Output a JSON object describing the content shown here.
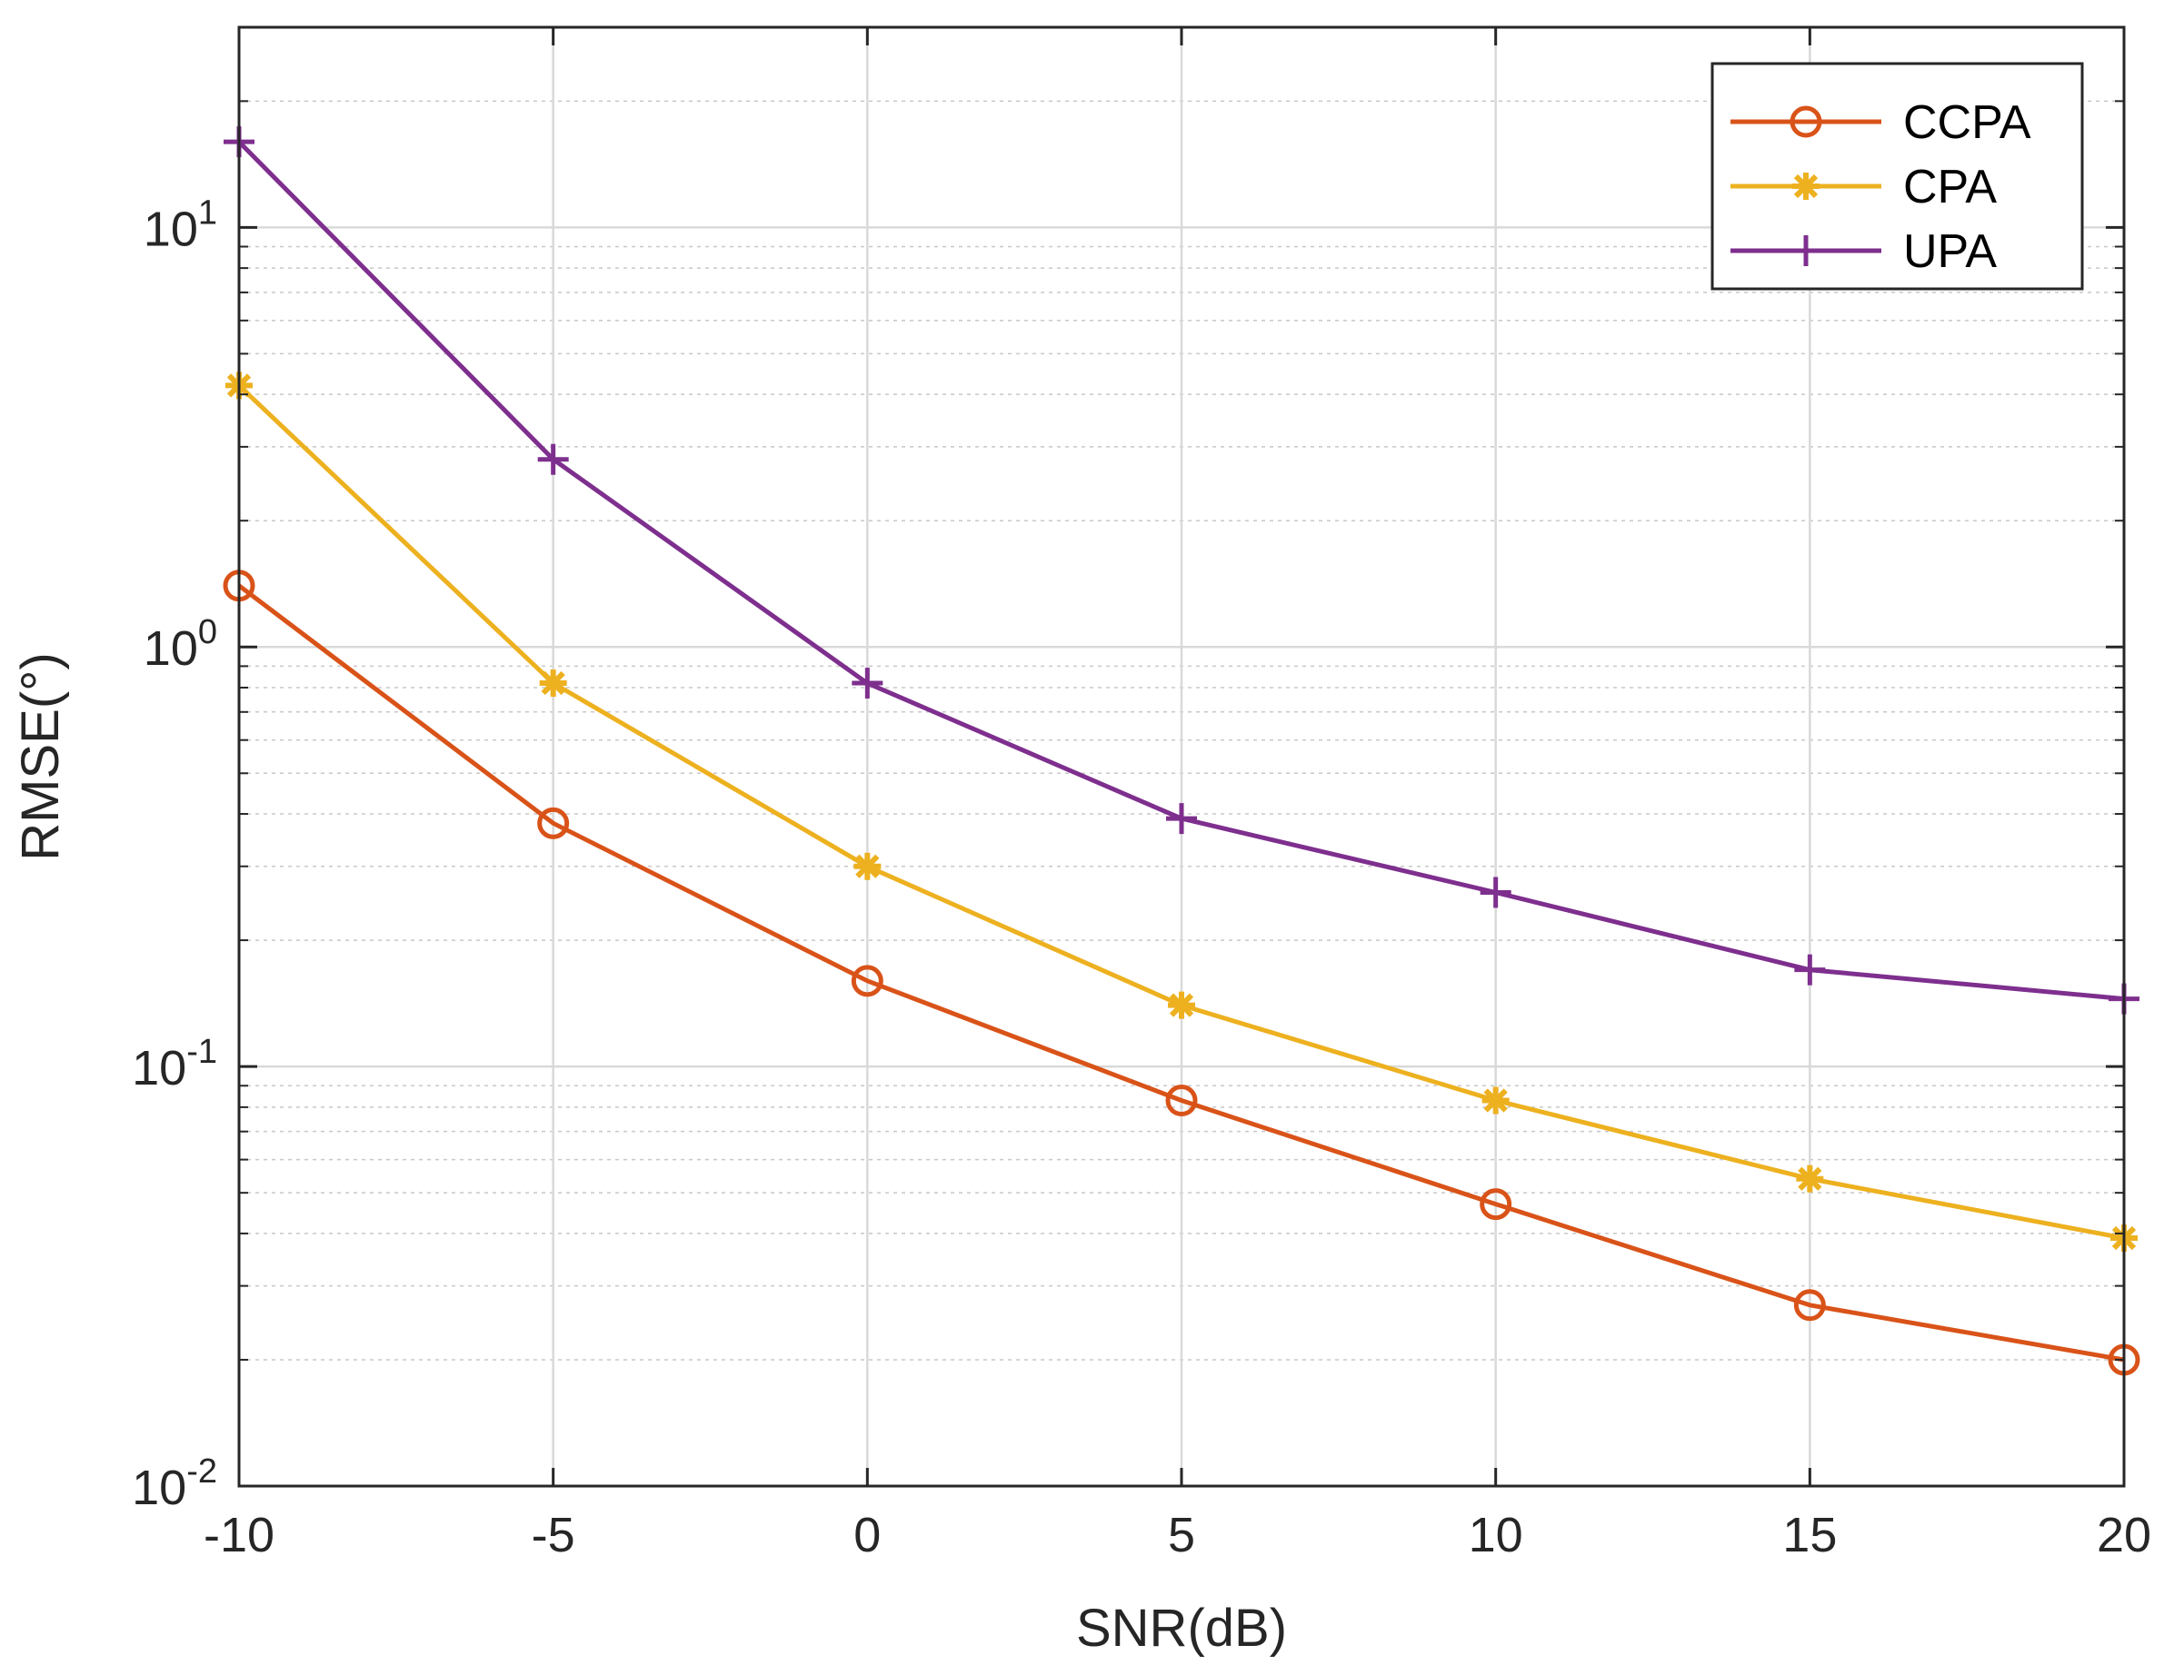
{
  "chart_data": {
    "type": "line",
    "title": "",
    "xlabel": "SNR(dB)",
    "ylabel": "RMSE(°)",
    "x": [
      -10,
      -5,
      0,
      5,
      10,
      15,
      20
    ],
    "xlim": [
      -10,
      20
    ],
    "ylim": [
      0.01,
      30
    ],
    "yscale": "log",
    "grid": true,
    "x_tick_labels": [
      "-10",
      "-5",
      "0",
      "5",
      "10",
      "15",
      "20"
    ],
    "y_ticks": [
      {
        "value": 10,
        "base": "10",
        "exp": "1"
      },
      {
        "value": 1,
        "base": "10",
        "exp": "0"
      },
      {
        "value": 0.1,
        "base": "10",
        "exp": "-1"
      },
      {
        "value": 0.01,
        "base": "10",
        "exp": "-2"
      }
    ],
    "legend_position": "top-right",
    "series": [
      {
        "name": "CCPA",
        "marker": "circle",
        "color": "#D95319",
        "values": [
          1.4,
          0.38,
          0.16,
          0.083,
          0.047,
          0.027,
          0.02
        ]
      },
      {
        "name": "CPA",
        "marker": "asterisk",
        "color": "#EDB120",
        "values": [
          4.2,
          0.82,
          0.3,
          0.14,
          0.083,
          0.054,
          0.039
        ]
      },
      {
        "name": "UPA",
        "marker": "plus",
        "color": "#7E2F8E",
        "values": [
          16,
          2.8,
          0.82,
          0.39,
          0.26,
          0.17,
          0.145
        ]
      }
    ]
  }
}
